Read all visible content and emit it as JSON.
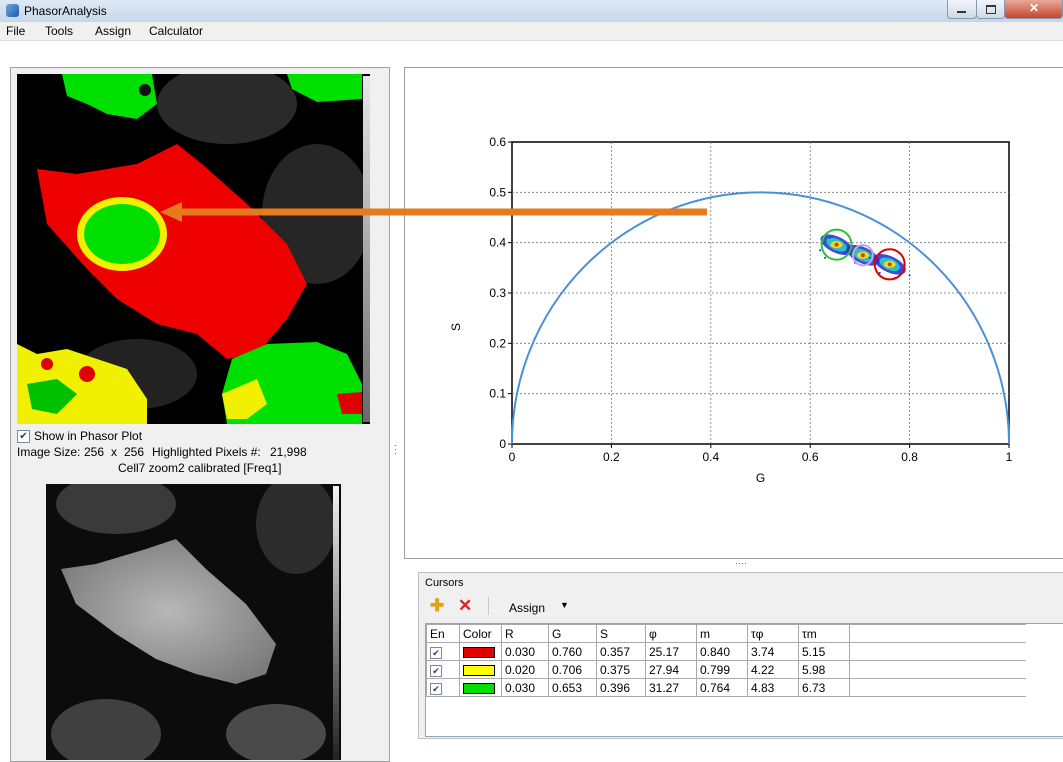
{
  "window": {
    "title": "PhasorAnalysis"
  },
  "menu": [
    "File",
    "Tools",
    "Assign",
    "Calculator"
  ],
  "left": {
    "show_in_phasor_label": "Show in Phasor Plot",
    "show_in_phasor_checked": true,
    "image_size_label": "Image Size:",
    "image_w": "256",
    "times": "x",
    "image_h": "256",
    "highlighted_label": "Highlighted Pixels #:",
    "highlighted_value": "21,998",
    "image_name": "Cell7 zoom2 calibrated [Freq1]"
  },
  "chart_data": {
    "type": "scatter",
    "xlabel": "G",
    "ylabel": "S",
    "xlim": [
      0,
      1
    ],
    "ylim": [
      0,
      0.6
    ],
    "x_ticks": [
      "0",
      "0.2",
      "0.4",
      "0.6",
      "0.8",
      "1"
    ],
    "y_ticks": [
      "0",
      "0.1",
      "0.2",
      "0.3",
      "0.4",
      "0.5",
      "0.6"
    ],
    "grid": true,
    "universal_circle": {
      "center_g": 0.5,
      "radius": 0.5,
      "color": "#4a90d9"
    },
    "clusters": [
      {
        "g": 0.653,
        "s": 0.396
      },
      {
        "g": 0.706,
        "s": 0.375
      },
      {
        "g": 0.76,
        "s": 0.357
      }
    ],
    "cursor_circles": [
      {
        "g": 0.76,
        "s": 0.357,
        "r": 0.03,
        "color": "#e00000"
      },
      {
        "g": 0.706,
        "s": 0.375,
        "r": 0.02,
        "color": "#c8a0e0"
      },
      {
        "g": 0.653,
        "s": 0.396,
        "r": 0.03,
        "color": "#30c040"
      }
    ],
    "arrow": {
      "color": "#e87a1e"
    }
  },
  "cursors": {
    "group_label": "Cursors",
    "add_icon": "plus-icon",
    "delete_icon": "red-x-icon",
    "assign_label": "Assign",
    "columns": [
      "En",
      "Color",
      "R",
      "G",
      "S",
      "φ",
      "m",
      "τφ",
      "τm"
    ],
    "rows": [
      {
        "enabled": true,
        "color": "#e00000",
        "R": "0.030",
        "G": "0.760",
        "S": "0.357",
        "phi": "25.17",
        "m": "0.840",
        "tphi": "3.74",
        "tm": "5.15"
      },
      {
        "enabled": true,
        "color": "#ffff00",
        "R": "0.020",
        "G": "0.706",
        "S": "0.375",
        "phi": "27.94",
        "m": "0.799",
        "tphi": "4.22",
        "tm": "5.98"
      },
      {
        "enabled": true,
        "color": "#00e000",
        "R": "0.030",
        "G": "0.653",
        "S": "0.396",
        "phi": "31.27",
        "m": "0.764",
        "tphi": "4.83",
        "tm": "6.73"
      }
    ]
  }
}
